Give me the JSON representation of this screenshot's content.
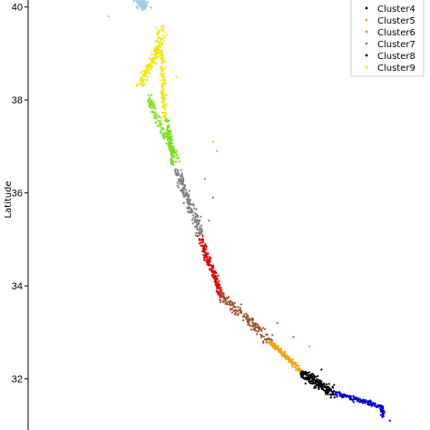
{
  "chart_data": {
    "type": "scatter",
    "title": "",
    "xlabel": "",
    "ylabel": "Latitude",
    "ylim": [
      30.9,
      40.15
    ],
    "xlim": [
      0,
      1
    ],
    "y_ticks": [
      {
        "value": 40,
        "label": "40"
      },
      {
        "value": 38,
        "label": "38"
      },
      {
        "value": 36,
        "label": "36"
      },
      {
        "value": 34,
        "label": "34"
      },
      {
        "value": 32,
        "label": "32"
      }
    ],
    "x_ticks": [],
    "grid": false,
    "legend_position": "top-right",
    "legend": [
      {
        "name": "Cluster4",
        "color": "#000000"
      },
      {
        "name": "Cluster5",
        "color": "#e8a317"
      },
      {
        "name": "Cluster6",
        "color": "#c8a030"
      },
      {
        "name": "Cluster7",
        "color": "#888888"
      },
      {
        "name": "Cluster8",
        "color": "#000000"
      },
      {
        "name": "Cluster9",
        "color": "#e8e000"
      }
    ],
    "series": [
      {
        "color": "#9ccde6",
        "path": [
          [
            0.275,
            40.15
          ],
          [
            0.29,
            40.0
          ]
        ],
        "spread": 0.012,
        "count": 120
      },
      {
        "color": "#f2e600",
        "path": [
          [
            0.33,
            39.55
          ],
          [
            0.325,
            39.1
          ],
          [
            0.3,
            38.7
          ],
          [
            0.28,
            38.3
          ]
        ],
        "spread": 0.01,
        "count": 160
      },
      {
        "color": "#f2e600",
        "path": [
          [
            0.33,
            39.1
          ],
          [
            0.335,
            38.6
          ],
          [
            0.335,
            38.1
          ],
          [
            0.34,
            37.6
          ]
        ],
        "spread": 0.006,
        "count": 120
      },
      {
        "color": "#7de020",
        "path": [
          [
            0.3,
            38.1
          ],
          [
            0.32,
            37.6
          ],
          [
            0.35,
            37.1
          ],
          [
            0.37,
            36.75
          ]
        ],
        "spread": 0.008,
        "count": 140
      },
      {
        "color": "#7de020",
        "path": [
          [
            0.345,
            37.6
          ],
          [
            0.355,
            37.1
          ],
          [
            0.36,
            36.6
          ]
        ],
        "spread": 0.006,
        "count": 110
      },
      {
        "color": "#808080",
        "path": [
          [
            0.37,
            36.5
          ],
          [
            0.39,
            36.0
          ],
          [
            0.415,
            35.5
          ],
          [
            0.43,
            35.1
          ]
        ],
        "spread": 0.01,
        "count": 200
      },
      {
        "color": "#e00000",
        "path": [
          [
            0.43,
            35.05
          ],
          [
            0.445,
            34.6
          ],
          [
            0.465,
            34.2
          ],
          [
            0.48,
            33.8
          ]
        ],
        "spread": 0.007,
        "count": 170
      },
      {
        "color": "#a0522d",
        "path": [
          [
            0.48,
            33.8
          ],
          [
            0.53,
            33.4
          ],
          [
            0.58,
            33.0
          ],
          [
            0.6,
            32.8
          ]
        ],
        "spread": 0.01,
        "count": 170
      },
      {
        "color": "#f5a000",
        "path": [
          [
            0.6,
            32.8
          ],
          [
            0.64,
            32.5
          ],
          [
            0.68,
            32.15
          ]
        ],
        "spread": 0.006,
        "count": 150
      },
      {
        "color": "#000000",
        "path": [
          [
            0.68,
            32.15
          ],
          [
            0.72,
            31.9
          ],
          [
            0.76,
            31.7
          ]
        ],
        "spread": 0.012,
        "count": 200
      },
      {
        "color": "#0000cc",
        "path": [
          [
            0.76,
            31.7
          ],
          [
            0.82,
            31.55
          ],
          [
            0.88,
            31.4
          ],
          [
            0.885,
            31.2
          ]
        ],
        "spread": 0.005,
        "count": 160
      }
    ],
    "outliers": [
      {
        "x": 0.2,
        "y": 39.8,
        "color": "#9ccde6"
      },
      {
        "x": 0.27,
        "y": 38.3,
        "color": "#f2e600"
      },
      {
        "x": 0.37,
        "y": 38.5,
        "color": "#f2e600"
      },
      {
        "x": 0.46,
        "y": 37.1,
        "color": "#7de020"
      },
      {
        "x": 0.47,
        "y": 36.9,
        "color": "#7de020"
      },
      {
        "x": 0.44,
        "y": 36.3,
        "color": "#808080"
      },
      {
        "x": 0.46,
        "y": 35.9,
        "color": "#808080"
      },
      {
        "x": 0.45,
        "y": 35.4,
        "color": "#808080"
      },
      {
        "x": 0.62,
        "y": 33.2,
        "color": "#a0522d"
      },
      {
        "x": 0.66,
        "y": 32.9,
        "color": "#a0522d"
      },
      {
        "x": 0.7,
        "y": 32.7,
        "color": "#f5a000"
      },
      {
        "x": 0.73,
        "y": 32.2,
        "color": "#000000"
      },
      {
        "x": 0.81,
        "y": 31.5,
        "color": "#0000cc"
      },
      {
        "x": 0.9,
        "y": 31.1,
        "color": "#0000cc"
      }
    ]
  }
}
